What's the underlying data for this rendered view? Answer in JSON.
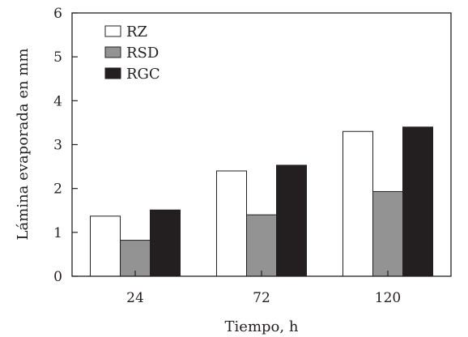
{
  "chart_data": {
    "type": "bar",
    "xlabel": "Tiempo, h",
    "ylabel": "Lámina evaporada en mm",
    "categories": [
      "24",
      "72",
      "120"
    ],
    "ylim": [
      0,
      6
    ],
    "yticks": [
      "0",
      "1",
      "2",
      "3",
      "4",
      "5",
      "6"
    ],
    "grid": false,
    "legend_position": "top-left",
    "series": [
      {
        "name": "RZ",
        "color": "#ffffff",
        "values": [
          1.37,
          2.4,
          3.3
        ]
      },
      {
        "name": "RSD",
        "color": "#939393",
        "values": [
          0.82,
          1.4,
          1.93
        ]
      },
      {
        "name": "RGC",
        "color": "#231f20",
        "values": [
          1.51,
          2.53,
          3.4
        ]
      }
    ]
  }
}
